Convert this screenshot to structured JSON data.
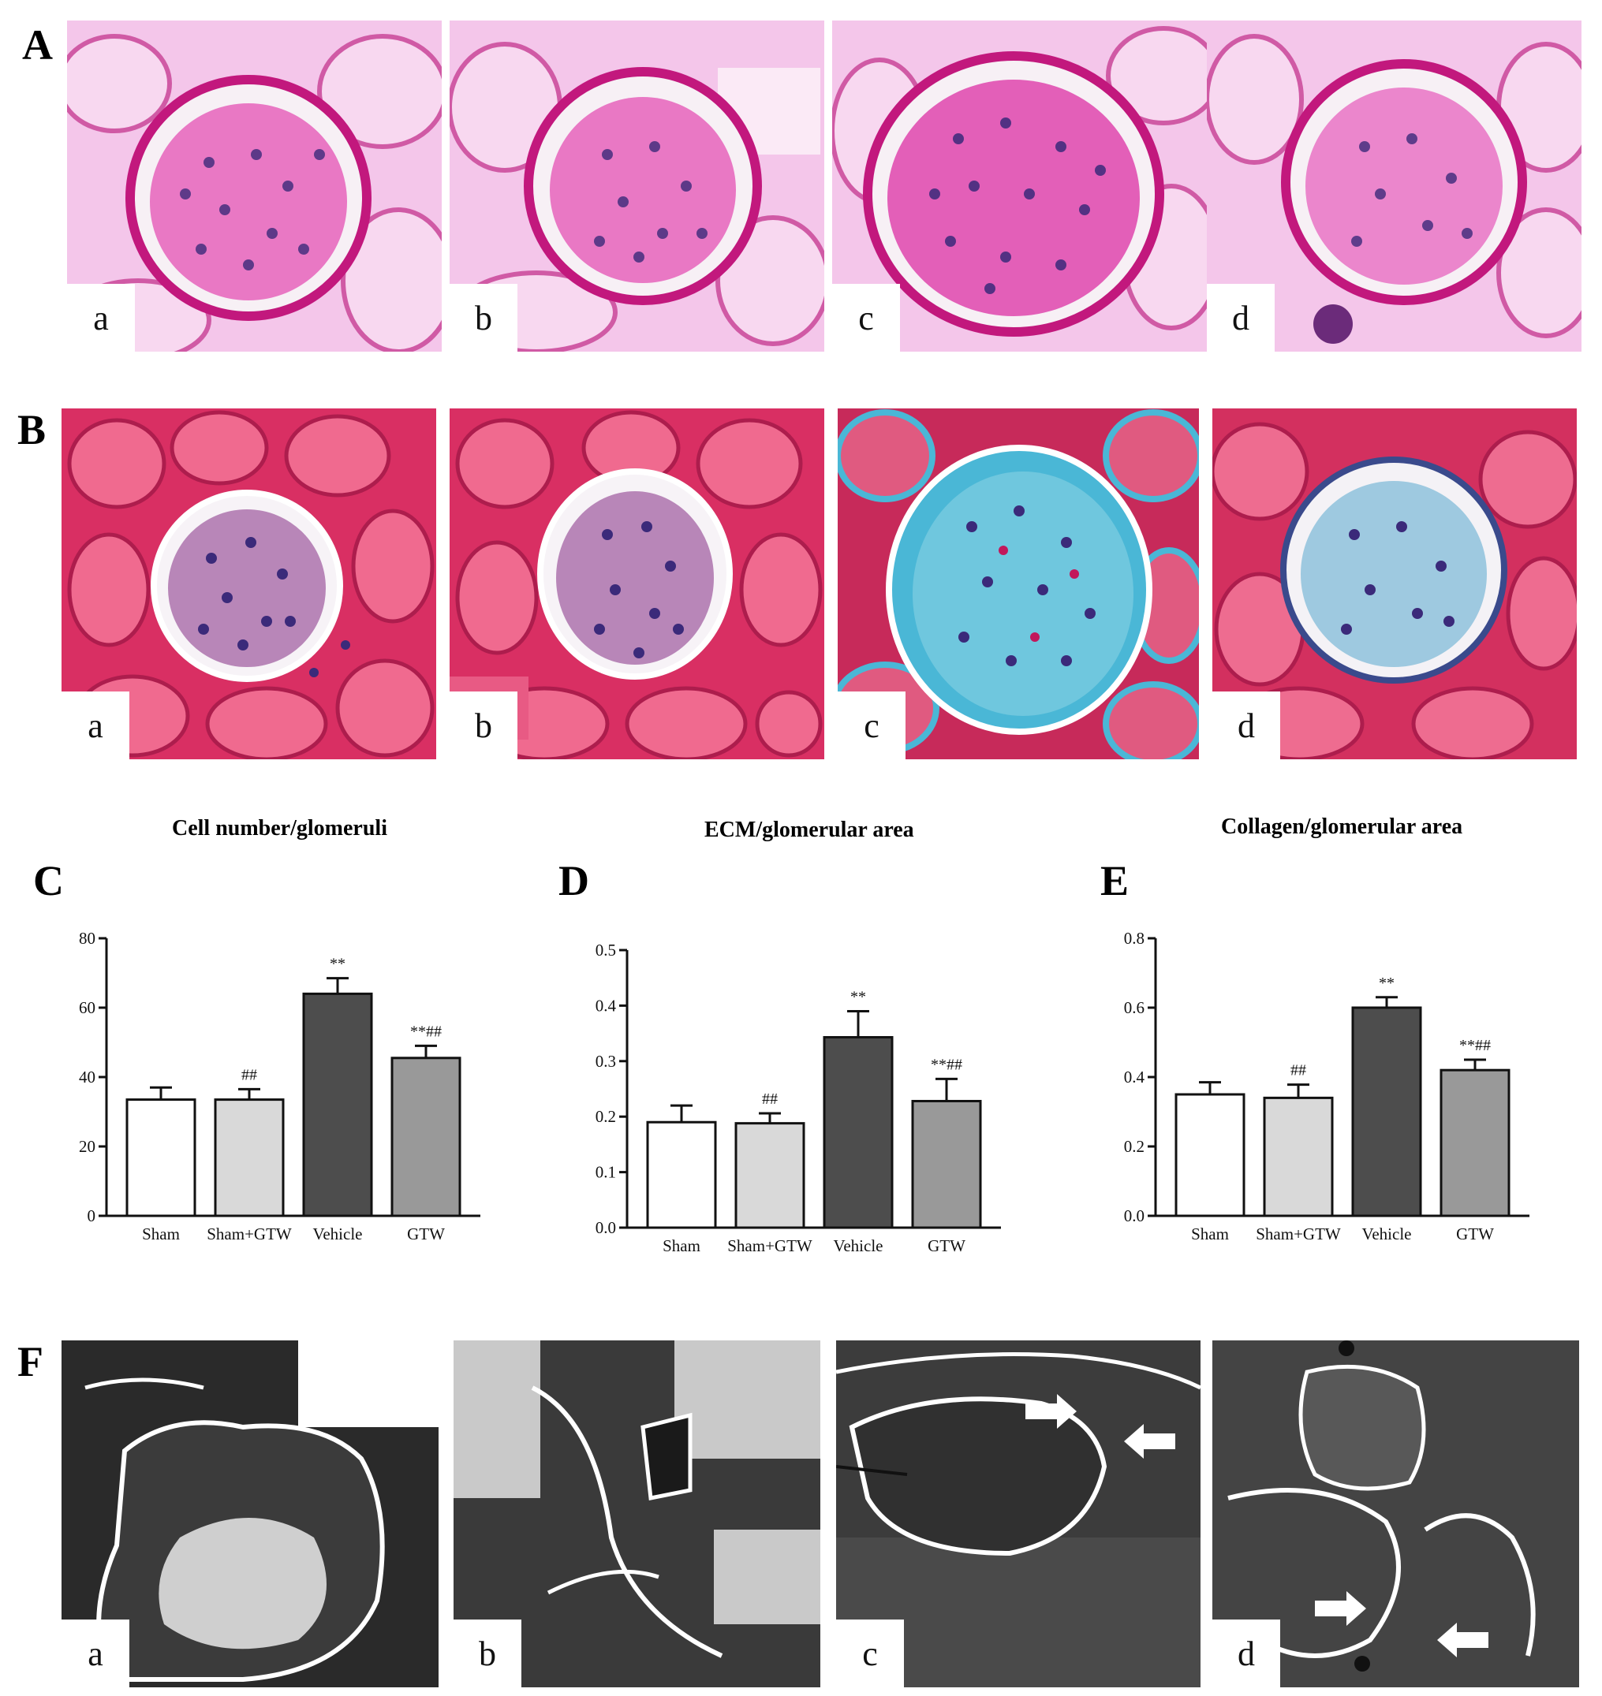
{
  "rows": {
    "A": {
      "label": "A",
      "panels": [
        "a",
        "b",
        "c",
        "d"
      ]
    },
    "B": {
      "label": "B",
      "panels": [
        "a",
        "b",
        "c",
        "d"
      ]
    },
    "F": {
      "label": "F",
      "panels": [
        "a",
        "b",
        "c",
        "d"
      ]
    }
  },
  "stain_colors": {
    "pas_background": "#f2b8e6",
    "pas_membrane": "#c2187d",
    "masson_background": "#e0336e",
    "masson_collagen": "#4ab7d6",
    "nucleus": "#3b2a7a",
    "em_dark": "#2a2a2a",
    "em_light": "#cfcfcf"
  },
  "chart_data": [
    {
      "panel_label": "C",
      "type": "bar",
      "title": "Cell number/glomeruli",
      "categories": [
        "Sham",
        "Sham+GTW",
        "Vehicle",
        "GTW"
      ],
      "values": [
        33.5,
        33.5,
        64,
        45.5
      ],
      "errors": [
        3.5,
        3,
        4.5,
        3.5
      ],
      "significance": [
        "",
        "##",
        "**",
        "**##"
      ],
      "bar_colors": [
        "#ffffff",
        "#d9d9d9",
        "#4d4d4d",
        "#999999"
      ],
      "ylim": [
        0,
        80
      ],
      "yticks": [
        "0",
        "20",
        "40",
        "60",
        "80"
      ],
      "xlabel": "",
      "ylabel": ""
    },
    {
      "panel_label": "D",
      "type": "bar",
      "title": "ECM/glomerular area",
      "categories": [
        "Sham",
        "Sham+GTW",
        "Vehicle",
        "GTW"
      ],
      "values": [
        0.19,
        0.188,
        0.343,
        0.228
      ],
      "errors": [
        0.03,
        0.018,
        0.047,
        0.04
      ],
      "significance": [
        "",
        "##",
        "**",
        "**##"
      ],
      "bar_colors": [
        "#ffffff",
        "#d9d9d9",
        "#4d4d4d",
        "#999999"
      ],
      "ylim": [
        0,
        0.5
      ],
      "yticks": [
        "0.0",
        "0.1",
        "0.2",
        "0.3",
        "0.4",
        "0.5"
      ],
      "xlabel": "",
      "ylabel": ""
    },
    {
      "panel_label": "E",
      "type": "bar",
      "title": "Collagen/glomerular area",
      "categories": [
        "Sham",
        "Sham+GTW",
        "Vehicle",
        "GTW"
      ],
      "values": [
        0.35,
        0.34,
        0.6,
        0.42
      ],
      "errors": [
        0.035,
        0.038,
        0.03,
        0.03
      ],
      "significance": [
        "",
        "##",
        "**",
        "**##"
      ],
      "bar_colors": [
        "#ffffff",
        "#d9d9d9",
        "#4d4d4d",
        "#999999"
      ],
      "ylim": [
        0,
        0.8
      ],
      "yticks": [
        "0.0",
        "0.2",
        "0.4",
        "0.6",
        "0.8"
      ],
      "xlabel": "",
      "ylabel": ""
    }
  ]
}
